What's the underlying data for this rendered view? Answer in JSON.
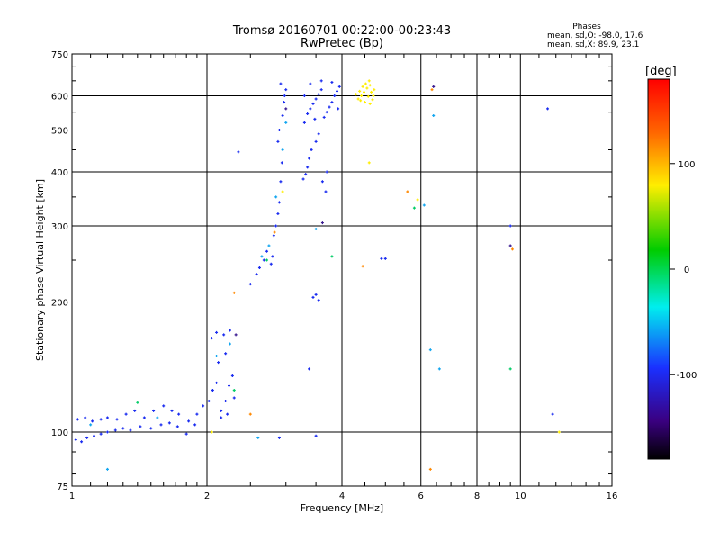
{
  "chart_data": {
    "type": "scatter",
    "title": "Tromsø 20160701 00:22:00-00:23:43",
    "subtitle": "RwPretec (Bp)",
    "xlabel": "Frequency [MHz]",
    "ylabel": "Stationary phase Virtual Height [km]",
    "x_scale": "log",
    "y_scale": "log",
    "xlim": [
      1,
      16
    ],
    "ylim": [
      75,
      750
    ],
    "x_ticks": [
      1,
      2,
      4,
      6,
      8,
      10,
      16
    ],
    "y_ticks": [
      75,
      100,
      200,
      300,
      400,
      500,
      600,
      750
    ],
    "grid": true,
    "legend_title": "Phases",
    "legend_lines": [
      "mean, sd,O: -98.0, 17.6",
      "mean, sd,X:  89.9, 23.1"
    ],
    "legend_position": "top-right",
    "colorbar": {
      "label": "[deg]",
      "range": [
        -180,
        180
      ],
      "ticks": [
        100,
        0,
        -100
      ],
      "tick_labels": [
        "100",
        "0",
        "-100"
      ]
    },
    "series": [
      {
        "color": "#1a2cf0",
        "points": [
          [
            1.02,
            96
          ],
          [
            1.05,
            95
          ],
          [
            1.08,
            97
          ],
          [
            1.12,
            98
          ],
          [
            1.16,
            99
          ],
          [
            1.2,
            100
          ],
          [
            1.25,
            101
          ],
          [
            1.3,
            102
          ],
          [
            1.35,
            101
          ],
          [
            1.42,
            103
          ],
          [
            1.5,
            102
          ],
          [
            1.58,
            104
          ],
          [
            1.65,
            105
          ],
          [
            1.72,
            103
          ],
          [
            1.8,
            99
          ],
          [
            1.88,
            104
          ],
          [
            1.03,
            107
          ],
          [
            1.07,
            108
          ],
          [
            1.11,
            106
          ],
          [
            1.16,
            107
          ],
          [
            1.2,
            108
          ],
          [
            1.26,
            107
          ],
          [
            1.32,
            110
          ],
          [
            1.38,
            112
          ],
          [
            1.45,
            108
          ],
          [
            1.52,
            112
          ],
          [
            1.6,
            115
          ],
          [
            1.67,
            112
          ],
          [
            1.73,
            110
          ],
          [
            1.82,
            106
          ],
          [
            1.9,
            110
          ],
          [
            1.96,
            115
          ],
          [
            2.02,
            118
          ],
          [
            2.06,
            125
          ],
          [
            2.1,
            130
          ],
          [
            2.15,
            112
          ],
          [
            2.2,
            118
          ],
          [
            2.24,
            128
          ],
          [
            2.28,
            135
          ],
          [
            2.12,
            145
          ],
          [
            2.2,
            152
          ],
          [
            2.05,
            165
          ],
          [
            2.1,
            170
          ],
          [
            2.18,
            168
          ],
          [
            2.25,
            172
          ],
          [
            2.15,
            108
          ],
          [
            2.22,
            110
          ],
          [
            2.3,
            120
          ],
          [
            2.5,
            220
          ],
          [
            2.58,
            232
          ],
          [
            2.62,
            240
          ],
          [
            2.68,
            250
          ],
          [
            2.72,
            262
          ],
          [
            2.78,
            245
          ],
          [
            2.8,
            255
          ],
          [
            2.82,
            285
          ],
          [
            2.85,
            300
          ],
          [
            2.88,
            320
          ],
          [
            2.9,
            340
          ],
          [
            2.92,
            380
          ],
          [
            2.94,
            420
          ],
          [
            2.88,
            470
          ],
          [
            2.9,
            500
          ],
          [
            2.95,
            540
          ],
          [
            2.97,
            580
          ],
          [
            3.0,
            620
          ],
          [
            2.92,
            640
          ],
          [
            2.98,
            600
          ],
          [
            3.28,
            385
          ],
          [
            3.32,
            395
          ],
          [
            3.35,
            410
          ],
          [
            3.38,
            430
          ],
          [
            3.42,
            450
          ],
          [
            3.5,
            470
          ],
          [
            3.55,
            490
          ],
          [
            3.62,
            380
          ],
          [
            3.68,
            360
          ],
          [
            3.7,
            400
          ],
          [
            3.3,
            520
          ],
          [
            3.35,
            545
          ],
          [
            3.4,
            560
          ],
          [
            3.45,
            575
          ],
          [
            3.5,
            590
          ],
          [
            3.55,
            605
          ],
          [
            3.6,
            620
          ],
          [
            3.65,
            535
          ],
          [
            3.7,
            550
          ],
          [
            3.75,
            565
          ],
          [
            3.8,
            580
          ],
          [
            3.85,
            600
          ],
          [
            3.9,
            615
          ],
          [
            3.95,
            630
          ],
          [
            3.4,
            640
          ],
          [
            3.6,
            650
          ],
          [
            3.8,
            645
          ],
          [
            3.92,
            560
          ],
          [
            3.3,
            600
          ],
          [
            3.48,
            530
          ],
          [
            3.45,
            205
          ],
          [
            3.5,
            208
          ],
          [
            3.55,
            202
          ],
          [
            3.38,
            140
          ],
          [
            4.9,
            252
          ],
          [
            5.0,
            252
          ],
          [
            9.5,
            300
          ],
          [
            11.8,
            110
          ],
          [
            11.5,
            560
          ],
          [
            2.35,
            445
          ],
          [
            3.5,
            98
          ],
          [
            2.9,
            97
          ]
        ]
      },
      {
        "color": "#12a6f0",
        "points": [
          [
            1.1,
            104
          ],
          [
            1.55,
            108
          ],
          [
            2.1,
            150
          ],
          [
            2.25,
            160
          ],
          [
            2.65,
            255
          ],
          [
            2.75,
            270
          ],
          [
            2.85,
            350
          ],
          [
            2.95,
            450
          ],
          [
            3.0,
            520
          ],
          [
            6.1,
            335
          ],
          [
            6.3,
            155
          ],
          [
            6.6,
            140
          ],
          [
            6.4,
            540
          ],
          [
            2.6,
            97
          ],
          [
            1.2,
            82
          ],
          [
            3.5,
            295
          ]
        ]
      },
      {
        "color": "#00cc66",
        "points": [
          [
            1.4,
            117
          ],
          [
            2.3,
            125
          ],
          [
            2.72,
            250
          ],
          [
            5.8,
            330
          ],
          [
            3.8,
            255
          ],
          [
            9.5,
            140
          ]
        ]
      },
      {
        "color": "#ffee00",
        "points": [
          [
            4.35,
            590
          ],
          [
            4.42,
            600
          ],
          [
            4.48,
            612
          ],
          [
            4.55,
            625
          ],
          [
            4.62,
            635
          ],
          [
            4.7,
            600
          ],
          [
            4.5,
            580
          ],
          [
            4.62,
            575
          ],
          [
            4.38,
            615
          ],
          [
            4.58,
            598
          ],
          [
            4.65,
            612
          ],
          [
            4.45,
            630
          ],
          [
            4.72,
            620
          ],
          [
            4.52,
            640
          ],
          [
            4.3,
            605
          ],
          [
            4.68,
            588
          ],
          [
            4.6,
            650
          ],
          [
            4.4,
            585
          ],
          [
            5.9,
            345
          ],
          [
            2.95,
            360
          ],
          [
            12.2,
            100
          ],
          [
            4.6,
            420
          ],
          [
            2.05,
            100
          ]
        ]
      },
      {
        "color": "#ff8800",
        "points": [
          [
            5.6,
            360
          ],
          [
            6.3,
            82
          ],
          [
            2.5,
            110
          ],
          [
            2.83,
            290
          ],
          [
            4.45,
            242
          ],
          [
            9.6,
            265
          ],
          [
            2.3,
            210
          ],
          [
            6.35,
            620
          ]
        ]
      },
      {
        "color": "#3a1a90",
        "points": [
          [
            6.4,
            630
          ],
          [
            9.5,
            270
          ],
          [
            3.0,
            560
          ],
          [
            3.62,
            305
          ],
          [
            2.32,
            168
          ]
        ]
      }
    ]
  }
}
